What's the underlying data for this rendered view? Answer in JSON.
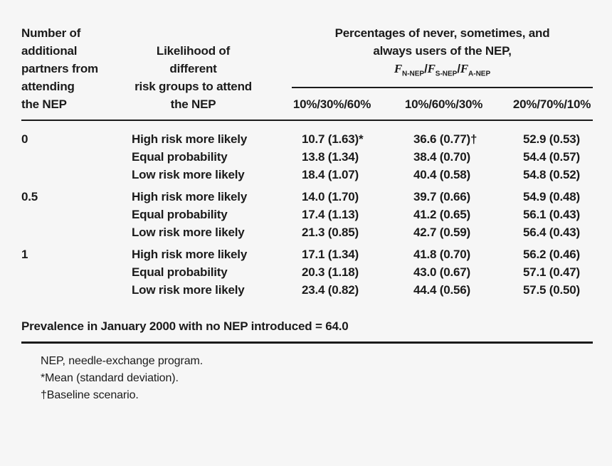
{
  "table": {
    "col1_header": [
      "Number of",
      "additional",
      "partners from",
      "attending",
      "the NEP"
    ],
    "col2_header": [
      "Likelihood of different",
      "risk groups to attend",
      "the NEP"
    ],
    "span_header": {
      "line1": "Percentages of never, sometimes, and",
      "line2": "always users of the NEP,",
      "f": "F",
      "sub_n": "N-NEP",
      "sub_s": "S-NEP",
      "sub_a": "A-NEP",
      "slash": "/"
    },
    "sub_headers": [
      "10%/30%/60%",
      "10%/60%/30%",
      "20%/70%/10%"
    ],
    "groups": [
      {
        "partners": "0",
        "rows": [
          {
            "likelihood": "High risk more likely",
            "v1": "10.7 (1.63)*",
            "v2": "36.6 (0.77)†",
            "v3": "52.9 (0.53)"
          },
          {
            "likelihood": "Equal probability",
            "v1": "13.8 (1.34)",
            "v2": "38.4 (0.70)",
            "v3": "54.4 (0.57)"
          },
          {
            "likelihood": "Low risk more likely",
            "v1": "18.4 (1.07)",
            "v2": "40.4 (0.58)",
            "v3": "54.8 (0.52)"
          }
        ]
      },
      {
        "partners": "0.5",
        "rows": [
          {
            "likelihood": "High risk more likely",
            "v1": "14.0 (1.70)",
            "v2": "39.7 (0.66)",
            "v3": "54.9 (0.48)"
          },
          {
            "likelihood": "Equal probability",
            "v1": "17.4 (1.13)",
            "v2": "41.2 (0.65)",
            "v3": "56.1 (0.43)"
          },
          {
            "likelihood": "Low risk more likely",
            "v1": "21.3 (0.85)",
            "v2": "42.7 (0.59)",
            "v3": "56.4 (0.43)"
          }
        ]
      },
      {
        "partners": "1",
        "rows": [
          {
            "likelihood": "High risk more likely",
            "v1": "17.1 (1.34)",
            "v2": "41.8 (0.70)",
            "v3": "56.2 (0.46)"
          },
          {
            "likelihood": "Equal probability",
            "v1": "20.3 (1.18)",
            "v2": "43.0 (0.67)",
            "v3": "57.1 (0.47)"
          },
          {
            "likelihood": "Low risk more likely",
            "v1": "23.4 (0.82)",
            "v2": "44.4 (0.56)",
            "v3": "57.5 (0.50)"
          }
        ]
      }
    ],
    "prevalence_note": "Prevalence in January 2000 with no NEP introduced = 64.0",
    "footnotes": [
      "NEP, needle-exchange program.",
      "*Mean (standard deviation).",
      "†Baseline scenario."
    ]
  },
  "colors": {
    "background": "#f6f6f6",
    "text": "#1b1b1b",
    "rule": "#1b1b1b"
  }
}
